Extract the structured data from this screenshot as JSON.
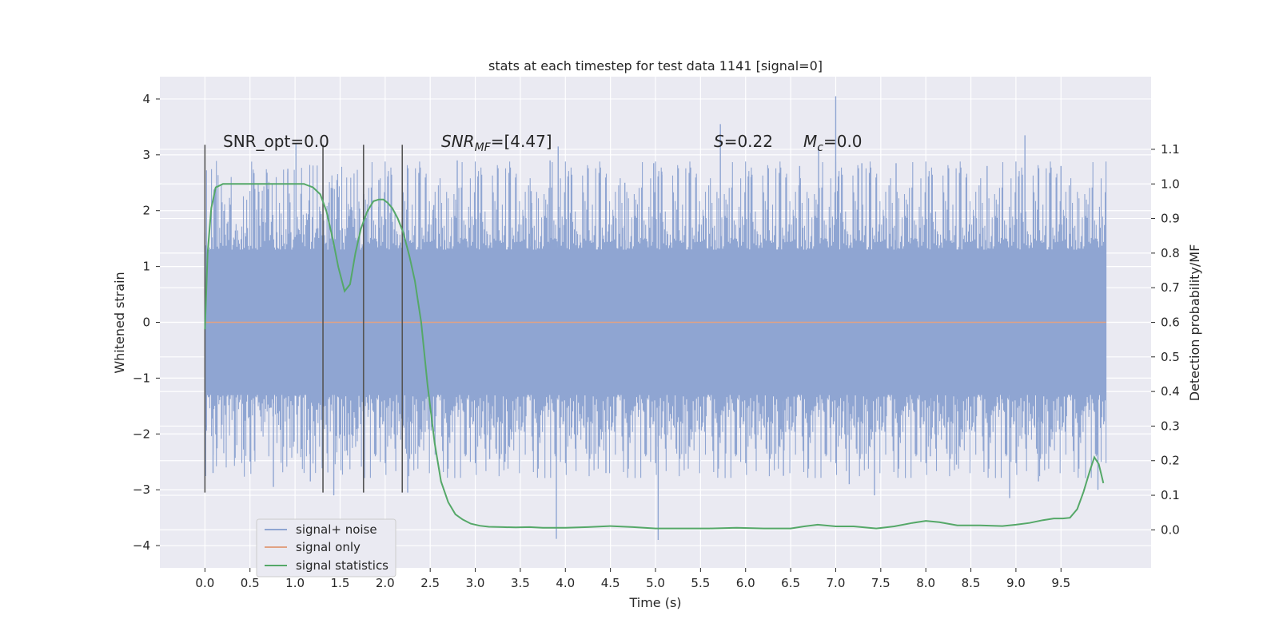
{
  "chart_data": {
    "type": "line",
    "title": "stats at each timestep for test data 1141 [signal=0]",
    "xlabel": "Time (s)",
    "ylabel": "Whitened strain",
    "y2label": "Detection probability/MF",
    "xlim": [
      -0.5,
      10.5
    ],
    "ylim": [
      -4.4,
      4.4
    ],
    "y2lim": [
      -0.11,
      1.31
    ],
    "x_ticks": [
      0.0,
      0.5,
      1.0,
      1.5,
      2.0,
      2.5,
      3.0,
      3.5,
      4.0,
      4.5,
      5.0,
      5.5,
      6.0,
      6.5,
      7.0,
      7.5,
      8.0,
      8.5,
      9.0,
      9.5
    ],
    "x_tick_labels": [
      "0.0",
      "0.5",
      "1.0",
      "1.5",
      "2.0",
      "2.5",
      "3.0",
      "3.5",
      "4.0",
      "4.5",
      "5.0",
      "5.5",
      "6.0",
      "6.5",
      "7.0",
      "7.5",
      "8.0",
      "8.5",
      "9.0",
      "9.5"
    ],
    "y_ticks": [
      4,
      3,
      2,
      1,
      0,
      -1,
      -2,
      -3,
      -4
    ],
    "y_tick_labels": [
      "4",
      "3",
      "2",
      "1",
      "0",
      "−1",
      "−2",
      "−3",
      "−4"
    ],
    "y2_ticks": [
      1.1,
      1.0,
      0.9,
      0.8,
      0.7,
      0.6,
      0.5,
      0.4,
      0.3,
      0.2,
      0.1,
      0.0
    ],
    "y2_tick_labels": [
      "1.1",
      "1.0",
      "0.9",
      "0.8",
      "0.7",
      "0.6",
      "0.5",
      "0.4",
      "0.3",
      "0.2",
      "0.1",
      "0.0"
    ],
    "grid": true,
    "legend_position": "bottom-left",
    "annotations": {
      "snr_opt": "SNR_opt=0.0",
      "snr_mf": "=[4.47]",
      "snr_mf_label": {
        "base": "SNR",
        "sub": "MF"
      },
      "s_stat": "=0.22",
      "s_stat_label": "S",
      "mc": "=0.0",
      "mc_label": {
        "base": "M",
        "sub": "c"
      }
    },
    "vertical_markers": {
      "x": [
        0.0,
        1.31,
        1.76,
        2.19
      ],
      "y_range": [
        -3.05,
        3.18
      ],
      "color": "#555555"
    },
    "series": [
      {
        "name": "signal+ noise",
        "color": "#8fa5d2",
        "style": "dense noise, approx. ±1.3 core band with spikes to about 4.0 and −3.9",
        "x_range": [
          0.0,
          10.0
        ],
        "spikes": [
          [
            0.0,
            1.6
          ],
          [
            0.09,
            -2.7
          ],
          [
            0.55,
            -2.3
          ],
          [
            0.76,
            -2.95
          ],
          [
            0.92,
            2.75
          ],
          [
            1.01,
            3.2
          ],
          [
            1.17,
            -2.85
          ],
          [
            1.43,
            -3.1
          ],
          [
            1.63,
            2.0
          ],
          [
            1.93,
            2.55
          ],
          [
            2.25,
            -3.05
          ],
          [
            2.54,
            2.1
          ],
          [
            2.8,
            2.9
          ],
          [
            3.16,
            -2.45
          ],
          [
            3.33,
            -2.5
          ],
          [
            3.62,
            2.35
          ],
          [
            3.83,
            2.9
          ],
          [
            3.9,
            -3.88
          ],
          [
            3.92,
            3.15
          ],
          [
            4.45,
            -2.7
          ],
          [
            4.66,
            2.5
          ],
          [
            4.98,
            2.85
          ],
          [
            5.03,
            -3.9
          ],
          [
            5.07,
            2.7
          ],
          [
            5.72,
            3.55
          ],
          [
            5.78,
            -2.35
          ],
          [
            6.06,
            2.6
          ],
          [
            6.42,
            -2.75
          ],
          [
            6.6,
            2.8
          ],
          [
            6.81,
            3.15
          ],
          [
            7.0,
            4.05
          ],
          [
            7.02,
            2.35
          ],
          [
            7.15,
            -2.9
          ],
          [
            7.29,
            2.85
          ],
          [
            7.43,
            -3.1
          ],
          [
            7.67,
            2.85
          ],
          [
            8.05,
            -2.4
          ],
          [
            8.34,
            -2.55
          ],
          [
            8.68,
            2.8
          ],
          [
            8.93,
            -3.15
          ],
          [
            9.1,
            3.35
          ],
          [
            9.25,
            -2.85
          ],
          [
            9.5,
            2.8
          ],
          [
            9.91,
            -3.0
          ]
        ]
      },
      {
        "name": "signal only",
        "color": "#e1a283",
        "x": [
          0.0,
          10.0
        ],
        "y": [
          0.0,
          0.0
        ]
      },
      {
        "name": "signal statistics",
        "color": "#55a868",
        "axis": "right",
        "x": [
          0.0,
          0.03,
          0.07,
          0.12,
          0.2,
          0.35,
          0.6,
          0.8,
          1.0,
          1.1,
          1.2,
          1.28,
          1.35,
          1.42,
          1.48,
          1.55,
          1.61,
          1.67,
          1.73,
          1.8,
          1.87,
          1.93,
          1.98,
          2.03,
          2.08,
          2.14,
          2.2,
          2.27,
          2.33,
          2.4,
          2.47,
          2.55,
          2.62,
          2.7,
          2.78,
          2.86,
          2.95,
          3.05,
          3.15,
          3.3,
          3.45,
          3.6,
          3.75,
          4.0,
          4.25,
          4.5,
          4.75,
          5.0,
          5.3,
          5.6,
          5.9,
          6.2,
          6.5,
          6.65,
          6.8,
          7.0,
          7.2,
          7.45,
          7.65,
          7.85,
          8.0,
          8.15,
          8.35,
          8.6,
          8.85,
          9.0,
          9.15,
          9.3,
          9.42,
          9.52,
          9.6,
          9.68,
          9.75,
          9.82,
          9.87,
          9.92,
          9.97
        ],
        "y": [
          0.58,
          0.8,
          0.93,
          0.99,
          1.0,
          1.0,
          1.0,
          1.0,
          1.0,
          1.0,
          0.99,
          0.97,
          0.92,
          0.84,
          0.76,
          0.69,
          0.71,
          0.8,
          0.87,
          0.92,
          0.95,
          0.955,
          0.955,
          0.945,
          0.93,
          0.9,
          0.86,
          0.79,
          0.72,
          0.6,
          0.42,
          0.25,
          0.14,
          0.08,
          0.045,
          0.03,
          0.018,
          0.012,
          0.009,
          0.008,
          0.007,
          0.008,
          0.006,
          0.006,
          0.008,
          0.011,
          0.008,
          0.004,
          0.004,
          0.004,
          0.006,
          0.004,
          0.004,
          0.01,
          0.015,
          0.01,
          0.01,
          0.004,
          0.01,
          0.02,
          0.026,
          0.022,
          0.013,
          0.013,
          0.011,
          0.015,
          0.02,
          0.028,
          0.033,
          0.033,
          0.035,
          0.06,
          0.11,
          0.17,
          0.21,
          0.19,
          0.135
        ]
      }
    ]
  }
}
